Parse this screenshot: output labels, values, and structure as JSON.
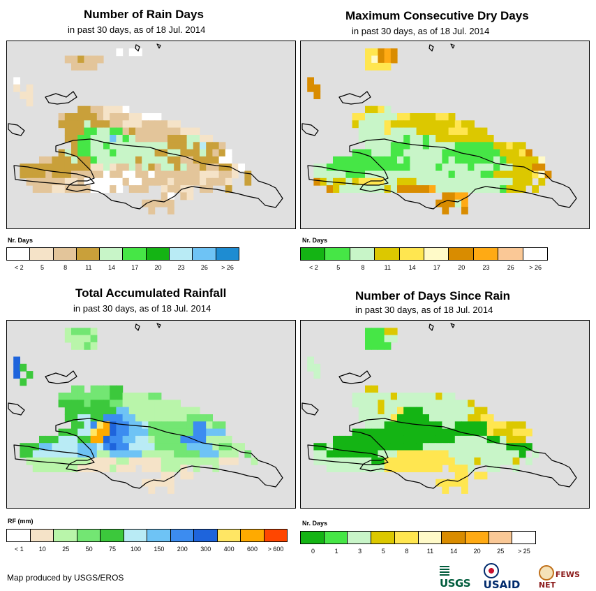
{
  "panels": [
    {
      "id": "rain_days",
      "title": "Number of Rain Days",
      "subtitle": "in past 30 days, as of 18 Jul. 2014",
      "legend_title": "Nr. Days",
      "legend_colors": [
        "#ffffff",
        "#f5e3c8",
        "#e3c59a",
        "#c9a03a",
        "#c8f5c8",
        "#46e646",
        "#14b414",
        "#b9ebf5",
        "#6ec3f5",
        "#1e8cd2"
      ],
      "legend_labels": [
        "< 2",
        "5",
        "8",
        "11",
        "14",
        "17",
        "20",
        "23",
        "26",
        "> 26"
      ],
      "grid_codes": [
        "...............................................",
        ".................0.00..........................",
        ".........223222................................",
        "..........2222.................................",
        "...............................................",
        ".0.............................................",
        ".1.1...........................................",
        "..11...........................................",
        "...1...........................................",
        "...........33221110............................",
        "........2333332122211000........................",
        "........3333433322111222211.....................",
        ".........333554455232222222111..................",
        ".........33554448454222223334411................",
        "..........355445444444444333437332.............",
        "........343554445444444334433343230............",
        ".....223334335444444344443322333300............",
        "..33333333333114122424324434223223310...........",
        "..3333233322222022002202222222111221.3...........",
        "...22222211200000020022221222212221..3.........",
        "....22211222200020.222..12211.22..3............",
        "........................20.21..................",
        ".....................22222.....................",
        "......................2..2....................."
      ]
    },
    {
      "id": "max_dry_days",
      "title": "Maximum Consecutive Dry Days",
      "subtitle": "in past 30 days, as of 18 Jul. 2014",
      "legend_title": "Nr. Days",
      "legend_colors": [
        "#14b414",
        "#46e646",
        "#c8f5c8",
        "#dcc800",
        "#ffe650",
        "#fffac8",
        "#d98c00",
        "#ffaa14",
        "#fac896",
        "#ffffff"
      ],
      "legend_labels": [
        "< 2",
        "5",
        "8",
        "11",
        "14",
        "17",
        "20",
        "23",
        "26",
        "> 26"
      ],
      "grid_codes": [
        "...............................................",
        "..........44676................................",
        "..........45676................................",
        "..........4444.................................",
        "...............................................",
        ".6.............................................",
        ".66............................................",
        "..6............................................",
        "...............................................",
        "..........3342..................................",
        "........4422222443333443........................",
        "........3222243333333333433.....................",
        ".........22224222233333444333...................",
        ".........222222212212333333333..................",
        "..........2222111221222211111133433.............",
        "........1112221122222211111111133346............",
        ".....111111111121222221211111121333335..........",
        "..221111111111111222212222122212233366..........",
        "..2222211122222222222221222211333333456..........",
        "..6323323444422333222222222222222333.3..........",
        "....6322222223266666722222222221333.3...........",
        "......................6677.....................",
        ".....................66627.....................",
        "......................6..6....................."
      ]
    },
    {
      "id": "total_rainfall",
      "title": "Total Accumulated Rainfall",
      "subtitle": "in past 30 days, as of 18 Jul. 2014",
      "legend_title": "RF (mm)",
      "legend_colors": [
        "#ffffff",
        "#f5e3c8",
        "#b9f5aa",
        "#73e673",
        "#3cc83c",
        "#b9ebf5",
        "#6ec3f5",
        "#3c8cf0",
        "#1e64dc",
        "#ffe664",
        "#ffaa00",
        "#ff4600"
      ],
      "legend_labels": [
        "< 1",
        "10",
        "25",
        "50",
        "75",
        "100",
        "150",
        "200",
        "300",
        "400",
        "600",
        "> 600"
      ],
      "grid_codes": [
        "...............................................",
        ".........23332.................................",
        ".........22223.................................",
        "..........2232.................................",
        "...............................................",
        ".8.............................................",
        ".84............................................",
        ".8.4...........................................",
        "..4............................................",
        "..........33.33344..............................",
        "........3333333344222233........................",
        "........4444344433222222222.....................",
        ".........444444446622222222222..................",
        ".........44554477766222222223333................",
        "..........44579A877665333333377233.............",
        "........444559AA877666333333377666.............",
        ".....44455544AA87766552333377772222............",
        "..44466555566657877555533333666623322...........",
        "..4455555556662266666222223333666222.3..........",
        "...222222222211112211111222222222111..2.........",
        "....2222222111112111.1112221.2..2...............",
        "........................11.11..................",
        ".....................11111.....................",
        "......................1..1....................."
      ]
    },
    {
      "id": "days_since_rain",
      "title": "Number of Days Since Rain",
      "subtitle": "in past 30 days, as of 18 Jul. 2014",
      "legend_title": "Nr. Days",
      "legend_colors": [
        "#14b414",
        "#46e646",
        "#c8f5c8",
        "#dcc800",
        "#ffe650",
        "#fffac8",
        "#d98c00",
        "#ffaa14",
        "#fac896",
        "#ffffff"
      ],
      "legend_labels": [
        "0",
        "1",
        "3",
        "5",
        "8",
        "11",
        "14",
        "20",
        "25",
        "> 25"
      ],
      "grid_codes": [
        "...............................................",
        "..........11133................................",
        "..........11122................................",
        "..........1111.................................",
        "...............................................",
        ".2.............................................",
        ".22............................................",
        "..2............................................",
        "...............................................",
        "..........33.....................................",
        "........2222223222222322........................",
        "........2222322222222222223.....................",
        ".........22232240002222222233...................",
        ".........222224000002222223344..................",
        "..........2220000000002200000444333............",
        "........0000000000000000000004333444............",
        ".....000000000000000000022222002333............",
        "..0020000000000000022222222222220000............",
        "..220000000022244444444222222222220.2..........",
        "..22222222200444444444442223222223.2............",
        "....222222222444444444.4442..22..2.............",
        "........................44.44..................",
        ".....................44444.....................",
        "......................4..4....................."
      ]
    }
  ],
  "footer": {
    "credit": "Map produced by USGS/EROS"
  },
  "logos": {
    "usgs": "USGS",
    "usaid": "USAID",
    "fews": "FEWS NET"
  }
}
